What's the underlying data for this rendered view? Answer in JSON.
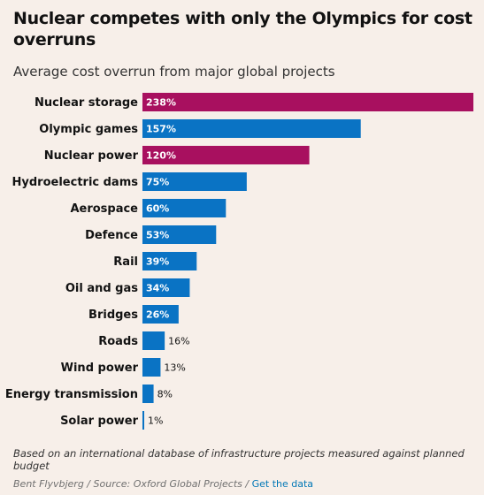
{
  "chart_data": {
    "type": "bar",
    "orientation": "horizontal",
    "title": "Nuclear competes with only the Olympics for cost overruns",
    "subtitle": "Average cost overrun from major global projects",
    "categories": [
      "Nuclear storage",
      "Olympic games",
      "Nuclear power",
      "Hydroelectric dams",
      "Aerospace",
      "Defence",
      "Rail",
      "Oil and gas",
      "Bridges",
      "Roads",
      "Wind power",
      "Energy transmission",
      "Solar power"
    ],
    "values": [
      238,
      157,
      120,
      75,
      60,
      53,
      39,
      34,
      26,
      16,
      13,
      8,
      1
    ],
    "value_labels": [
      "238%",
      "157%",
      "120%",
      "75%",
      "60%",
      "53%",
      "39%",
      "34%",
      "26%",
      "16%",
      "13%",
      "8%",
      "1%"
    ],
    "highlight": [
      "Nuclear storage",
      "Nuclear power"
    ],
    "xlim": [
      0,
      238
    ],
    "grid": false
  },
  "colors": {
    "highlight": "#a8105f",
    "default": "#0a73c4",
    "background": "#f7efe9"
  },
  "footer": {
    "note": "Based on an international database of infrastructure projects measured against planned budget",
    "source": "Bent Flyvbjerg / Source: Oxford Global Projects / ",
    "link_label": "Get the data"
  }
}
